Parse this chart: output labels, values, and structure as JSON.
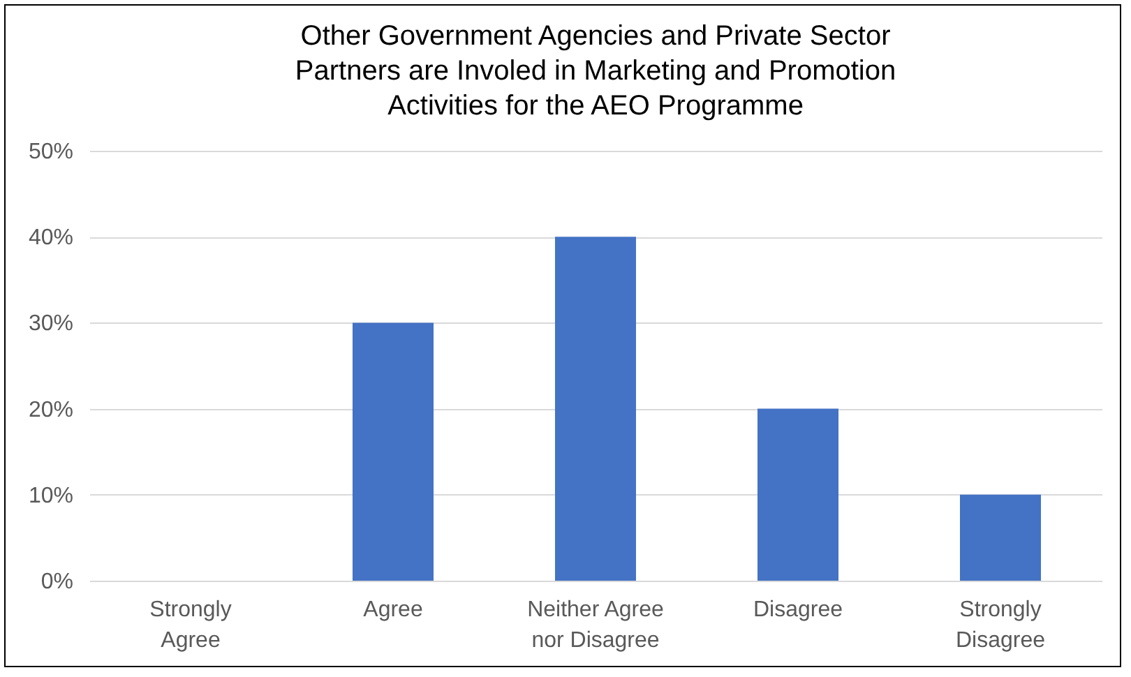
{
  "chart_data": {
    "type": "bar",
    "title": "Other Government Agencies and Private Sector Partners are Involed in Marketing and Promotion Activities for the AEO Programme",
    "categories": [
      "Strongly Agree",
      "Agree",
      "Neither Agree nor Disagree",
      "Disagree",
      "Strongly Disagree"
    ],
    "values": [
      0,
      30,
      40,
      20,
      10
    ],
    "color": "#4472c4",
    "ylim": [
      0,
      50
    ],
    "yticks": [
      {
        "value": 0,
        "label": "0%"
      },
      {
        "value": 10,
        "label": "10%"
      },
      {
        "value": 20,
        "label": "20%"
      },
      {
        "value": 30,
        "label": "30%"
      },
      {
        "value": 40,
        "label": "40%"
      },
      {
        "value": 50,
        "label": "50%"
      }
    ],
    "grid": "y"
  }
}
